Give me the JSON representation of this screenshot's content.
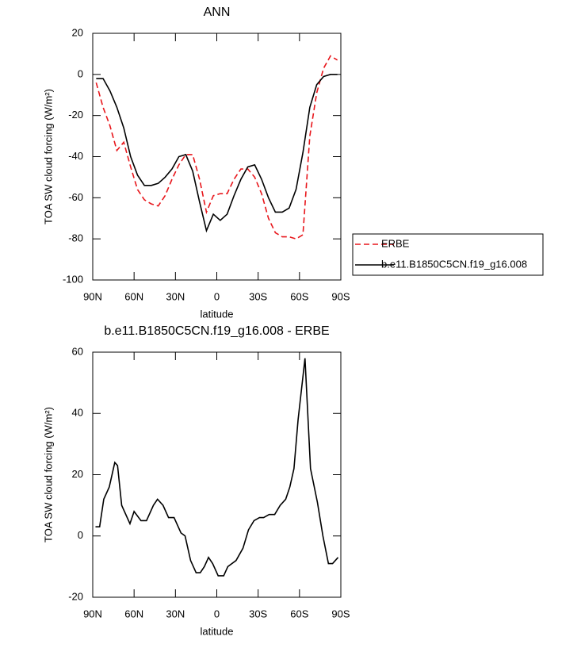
{
  "chart_data": [
    {
      "type": "line",
      "title": "ANN",
      "xlabel": "latitude",
      "ylabel": "TOA SW cloud forcing (W/m²)",
      "x": [
        87.5,
        82.5,
        77.5,
        72.5,
        67.5,
        62.5,
        57.5,
        52.5,
        47.5,
        42.5,
        37.5,
        32.5,
        27.5,
        22.5,
        17.5,
        12.5,
        7.5,
        2.5,
        -2.5,
        -7.5,
        -12.5,
        -17.5,
        -22.5,
        -27.5,
        -32.5,
        -37.5,
        -42.5,
        -47.5,
        -52.5,
        -57.5,
        -62.5,
        -67.5,
        -72.5,
        -77.5,
        -82.5,
        -87.5
      ],
      "series": [
        {
          "name": "ERBE",
          "color": "#e8161b",
          "dash": true,
          "values": [
            -4,
            -16,
            -25,
            -37,
            -33,
            -45,
            -56,
            -61,
            -63,
            -64,
            -59,
            -51,
            -44,
            -39,
            -39,
            -51,
            -67,
            -59,
            -58,
            -58,
            -51,
            -46,
            -46,
            -50,
            -58,
            -70,
            -77,
            -79,
            -79,
            -80,
            -78,
            -30,
            -9,
            3,
            9,
            7
          ]
        },
        {
          "name": "b.e11.B1850C5CN.f19_g16.008",
          "color": "#000000",
          "dash": false,
          "values": [
            -2,
            -2,
            -8,
            -16,
            -26,
            -40,
            -49,
            -54,
            -54,
            -53,
            -50,
            -46,
            -40,
            -39,
            -47,
            -62,
            -76,
            -68,
            -71,
            -68,
            -59,
            -51,
            -45,
            -44,
            -51,
            -60,
            -67,
            -67,
            -65,
            -56,
            -38,
            -16,
            -5,
            -1,
            0,
            0
          ]
        }
      ],
      "xlim": [
        90,
        -90
      ],
      "xticks": [
        {
          "value": 90,
          "label": "90N"
        },
        {
          "value": 60,
          "label": "60N"
        },
        {
          "value": 30,
          "label": "30N"
        },
        0,
        {
          "value": -30,
          "label": "30S"
        },
        {
          "value": -60,
          "label": "60S"
        },
        {
          "value": -90,
          "label": "90S"
        }
      ],
      "ylim": [
        -100,
        20
      ],
      "yticks": [
        -100,
        -80,
        -60,
        -40,
        -20,
        0,
        20
      ],
      "legend": "right"
    },
    {
      "type": "line",
      "title": "b.e11.B1850C5CN.f19_g16.008 - ERBE",
      "xlabel": "latitude",
      "ylabel": "TOA SW cloud forcing (W/m²)",
      "x": [
        88,
        85,
        82,
        78,
        74,
        72,
        69,
        63,
        60,
        55,
        51,
        46,
        43,
        39,
        35,
        31,
        26,
        23,
        19,
        15,
        12,
        9,
        6,
        3,
        -1,
        -5,
        -8,
        -14,
        -19,
        -23,
        -27,
        -31,
        -34,
        -38,
        -42,
        -46,
        -50,
        -53,
        -56,
        -59,
        -64,
        -68,
        -73,
        -77,
        -81,
        -84,
        -88
      ],
      "values": [
        3,
        3,
        12,
        16,
        24,
        23,
        10,
        4,
        8,
        5,
        5,
        10,
        12,
        10,
        6,
        6,
        1,
        0,
        -8,
        -12,
        -12,
        -10,
        -7,
        -9,
        -13,
        -13,
        -10,
        -8,
        -4,
        2,
        5,
        6,
        6,
        7,
        7,
        10,
        12,
        16,
        22,
        38,
        58,
        22,
        11,
        0,
        -9,
        -9,
        -7
      ],
      "color": "#000000",
      "xlim": [
        90,
        -90
      ],
      "xticks": [
        {
          "value": 90,
          "label": "90N"
        },
        {
          "value": 60,
          "label": "60N"
        },
        {
          "value": 30,
          "label": "30N"
        },
        0,
        {
          "value": -30,
          "label": "30S"
        },
        {
          "value": -60,
          "label": "60S"
        },
        {
          "value": -90,
          "label": "90S"
        }
      ],
      "ylim": [
        -20,
        60
      ],
      "yticks": [
        -20,
        0,
        20,
        40,
        60
      ]
    }
  ]
}
